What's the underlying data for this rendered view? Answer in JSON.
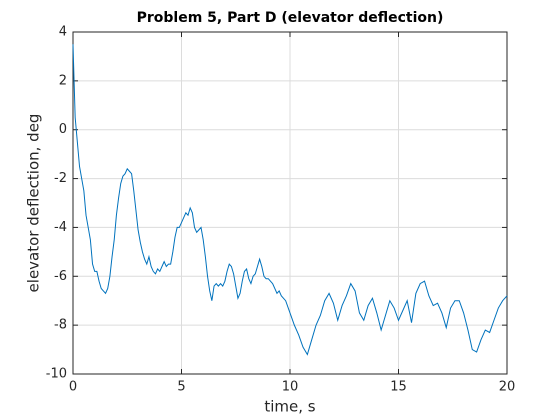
{
  "chart_data": {
    "type": "line",
    "title": "Problem 5, Part D (elevator deflection)",
    "x_label": "time, s",
    "y_label": "elevator deflection, deg",
    "x": [
      0,
      0.05,
      0.1,
      0.2,
      0.3,
      0.4,
      0.5,
      0.6,
      0.7,
      0.8,
      0.9,
      1.0,
      1.1,
      1.2,
      1.3,
      1.4,
      1.5,
      1.6,
      1.7,
      1.8,
      1.9,
      2.0,
      2.1,
      2.2,
      2.3,
      2.4,
      2.5,
      2.6,
      2.7,
      2.8,
      2.9,
      3.0,
      3.1,
      3.2,
      3.3,
      3.4,
      3.5,
      3.6,
      3.7,
      3.8,
      3.9,
      4.0,
      4.1,
      4.2,
      4.3,
      4.4,
      4.5,
      4.6,
      4.7,
      4.8,
      4.9,
      5.0,
      5.1,
      5.2,
      5.3,
      5.4,
      5.5,
      5.6,
      5.7,
      5.8,
      5.9,
      6.0,
      6.1,
      6.2,
      6.3,
      6.4,
      6.5,
      6.6,
      6.7,
      6.8,
      6.9,
      7.0,
      7.1,
      7.2,
      7.3,
      7.4,
      7.5,
      7.6,
      7.7,
      7.8,
      7.9,
      8.0,
      8.1,
      8.2,
      8.3,
      8.4,
      8.5,
      8.6,
      8.7,
      8.8,
      8.9,
      9.0,
      9.2,
      9.4,
      9.5,
      9.6,
      9.8,
      10.0,
      10.2,
      10.4,
      10.6,
      10.8,
      11.0,
      11.2,
      11.4,
      11.6,
      11.8,
      12.0,
      12.2,
      12.4,
      12.6,
      12.8,
      13.0,
      13.2,
      13.4,
      13.6,
      13.8,
      14.0,
      14.2,
      14.4,
      14.6,
      14.8,
      15.0,
      15.2,
      15.4,
      15.6,
      15.8,
      16.0,
      16.2,
      16.4,
      16.6,
      16.8,
      17.0,
      17.2,
      17.4,
      17.6,
      17.8,
      18.0,
      18.2,
      18.4,
      18.6,
      18.8,
      19.0,
      19.2,
      19.4,
      19.6,
      19.8,
      20.0
    ],
    "series": [
      {
        "name": "elevator deflection",
        "color": "#0072bd",
        "values": [
          3.5,
          2,
          0.5,
          -0.5,
          -1.5,
          -2,
          -2.5,
          -3.5,
          -4,
          -4.5,
          -5.5,
          -5.8,
          -5.8,
          -6.2,
          -6.5,
          -6.6,
          -6.7,
          -6.5,
          -6,
          -5.2,
          -4.5,
          -3.5,
          -2.8,
          -2.2,
          -1.9,
          -1.8,
          -1.6,
          -1.7,
          -1.8,
          -2.5,
          -3.3,
          -4.1,
          -4.6,
          -5.0,
          -5.3,
          -5.5,
          -5.2,
          -5.6,
          -5.8,
          -5.9,
          -5.7,
          -5.8,
          -5.6,
          -5.4,
          -5.6,
          -5.5,
          -5.5,
          -5.0,
          -4.4,
          -4.0,
          -4.0,
          -3.8,
          -3.6,
          -3.4,
          -3.5,
          -3.2,
          -3.4,
          -4.0,
          -4.2,
          -4.1,
          -4.0,
          -4.5,
          -5.2,
          -6.0,
          -6.6,
          -7.0,
          -6.4,
          -6.3,
          -6.4,
          -6.3,
          -6.4,
          -6.2,
          -5.8,
          -5.5,
          -5.6,
          -5.9,
          -6.4,
          -6.9,
          -6.7,
          -6.2,
          -5.8,
          -5.7,
          -6.1,
          -6.3,
          -6.0,
          -5.9,
          -5.6,
          -5.3,
          -5.6,
          -6.0,
          -6.1,
          -6.1,
          -6.3,
          -6.7,
          -6.6,
          -6.8,
          -7.0,
          -7.5,
          -8.0,
          -8.4,
          -8.9,
          -9.2,
          -8.6,
          -8.0,
          -7.6,
          -7.0,
          -6.7,
          -7.1,
          -7.8,
          -7.2,
          -6.8,
          -6.3,
          -6.6,
          -7.5,
          -7.8,
          -7.2,
          -6.9,
          -7.5,
          -8.2,
          -7.6,
          -7.0,
          -7.3,
          -7.8,
          -7.4,
          -7.0,
          -7.9,
          -6.7,
          -6.3,
          -6.2,
          -6.8,
          -7.2,
          -7.1,
          -7.5,
          -8.1,
          -7.3,
          -7.0,
          -7.0,
          -7.5,
          -8.2,
          -9.0,
          -9.1,
          -8.6,
          -8.2,
          -8.3,
          -7.8,
          -7.3,
          -7.0,
          -6.8
        ]
      }
    ],
    "xlim": [
      0,
      20
    ],
    "xticks": [
      0,
      5,
      10,
      15,
      20
    ],
    "ylim": [
      -10,
      4
    ],
    "yticks": [
      -10,
      -8,
      -6,
      -4,
      -2,
      0,
      2,
      4
    ],
    "grid": true
  }
}
